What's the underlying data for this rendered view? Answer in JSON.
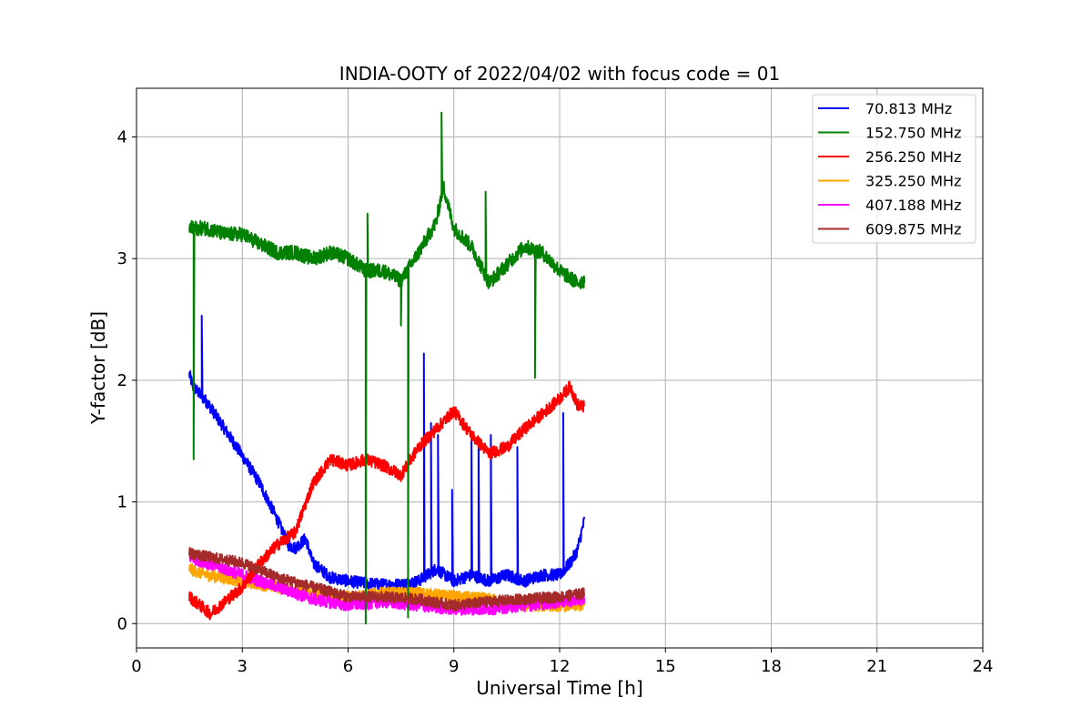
{
  "chart_data": {
    "type": "line",
    "title": "INDIA-OOTY of 2022/04/02 with focus code = 01",
    "xlabel": "Universal Time [h]",
    "ylabel": "Y-factor [dB]",
    "xlim": [
      0,
      24
    ],
    "ylim": [
      -0.2,
      4.4
    ],
    "xticks": [
      0,
      3,
      6,
      9,
      12,
      15,
      18,
      21,
      24
    ],
    "yticks": [
      0,
      1,
      2,
      3,
      4
    ],
    "grid": true,
    "legend_position": "top-right",
    "series": [
      {
        "name": " 70.813 MHz",
        "color": "#0000ff",
        "noise": 0.05,
        "x": [
          1.5,
          1.6,
          2.0,
          2.5,
          3.0,
          3.5,
          4.0,
          4.3,
          4.5,
          4.8,
          5.0,
          5.5,
          6.0,
          6.5,
          7.0,
          7.5,
          8.0,
          8.5,
          9.0,
          9.5,
          10.0,
          10.5,
          11.0,
          11.5,
          12.0,
          12.3,
          12.5,
          12.7
        ],
        "y": [
          2.05,
          1.95,
          1.82,
          1.6,
          1.38,
          1.15,
          0.85,
          0.65,
          0.62,
          0.7,
          0.5,
          0.38,
          0.35,
          0.33,
          0.32,
          0.32,
          0.35,
          0.45,
          0.35,
          0.4,
          0.35,
          0.4,
          0.35,
          0.4,
          0.4,
          0.5,
          0.6,
          0.85
        ],
        "spikes": [
          {
            "x": 1.85,
            "y": 2.53
          },
          {
            "x": 8.15,
            "y": 2.22
          },
          {
            "x": 8.35,
            "y": 1.65
          },
          {
            "x": 8.55,
            "y": 1.55
          },
          {
            "x": 9.5,
            "y": 1.5
          },
          {
            "x": 9.7,
            "y": 1.45
          },
          {
            "x": 10.05,
            "y": 1.55
          },
          {
            "x": 10.8,
            "y": 1.45
          },
          {
            "x": 12.1,
            "y": 1.73
          },
          {
            "x": 8.95,
            "y": 1.1
          }
        ]
      },
      {
        "name": "152.750 MHz",
        "color": "#008000",
        "noise": 0.06,
        "x": [
          1.5,
          2.0,
          2.5,
          3.0,
          3.5,
          4.0,
          4.5,
          5.0,
          5.5,
          6.0,
          6.5,
          7.0,
          7.5,
          8.0,
          8.5,
          8.7,
          9.0,
          9.5,
          10.0,
          10.5,
          11.0,
          11.5,
          12.0,
          12.5,
          12.7
        ],
        "y": [
          3.25,
          3.25,
          3.2,
          3.2,
          3.12,
          3.05,
          3.05,
          3.0,
          3.05,
          3.0,
          2.9,
          2.9,
          2.82,
          3.05,
          3.3,
          3.6,
          3.25,
          3.1,
          2.8,
          2.95,
          3.1,
          3.05,
          2.9,
          2.8,
          2.82
        ],
        "spikes": [
          {
            "x": 1.62,
            "y": 1.35
          },
          {
            "x": 6.5,
            "y": 0.0
          },
          {
            "x": 7.7,
            "y": 0.05
          },
          {
            "x": 11.3,
            "y": 2.02
          },
          {
            "x": 8.65,
            "y": 4.2
          },
          {
            "x": 6.55,
            "y": 3.37
          },
          {
            "x": 7.5,
            "y": 2.45
          },
          {
            "x": 9.9,
            "y": 3.55
          }
        ]
      },
      {
        "name": "256.250 MHz",
        "color": "#ff0000",
        "noise": 0.05,
        "x": [
          1.5,
          1.8,
          2.1,
          2.5,
          3.0,
          3.5,
          4.0,
          4.5,
          5.0,
          5.5,
          6.0,
          6.5,
          7.0,
          7.5,
          8.0,
          8.5,
          9.0,
          9.5,
          10.0,
          10.5,
          11.0,
          11.5,
          12.0,
          12.3,
          12.5,
          12.7
        ],
        "y": [
          0.22,
          0.15,
          0.08,
          0.18,
          0.3,
          0.5,
          0.65,
          0.75,
          1.15,
          1.35,
          1.3,
          1.35,
          1.3,
          1.22,
          1.45,
          1.6,
          1.75,
          1.55,
          1.4,
          1.45,
          1.6,
          1.72,
          1.85,
          1.95,
          1.8,
          1.78
        ],
        "spikes": []
      },
      {
        "name": "325.250 MHz",
        "color": "#ffa500",
        "noise": 0.05,
        "x": [
          1.5,
          2.0,
          3.0,
          4.0,
          5.0,
          6.0,
          7.0,
          8.0,
          9.0,
          10.0,
          11.0,
          12.0,
          12.7
        ],
        "y": [
          0.45,
          0.4,
          0.35,
          0.3,
          0.25,
          0.22,
          0.25,
          0.25,
          0.22,
          0.2,
          0.15,
          0.15,
          0.15
        ],
        "spikes": []
      },
      {
        "name": "407.188 MHz",
        "color": "#ff00ff",
        "noise": 0.05,
        "x": [
          1.5,
          2.0,
          3.0,
          4.0,
          5.0,
          6.0,
          7.0,
          8.0,
          9.0,
          10.0,
          11.0,
          12.0,
          12.7
        ],
        "y": [
          0.55,
          0.5,
          0.4,
          0.3,
          0.2,
          0.15,
          0.18,
          0.15,
          0.12,
          0.12,
          0.15,
          0.18,
          0.2
        ],
        "spikes": []
      },
      {
        "name": "609.875 MHz",
        "color": "#a52a2a",
        "noise": 0.045,
        "x": [
          1.5,
          2.0,
          3.0,
          4.0,
          5.0,
          6.0,
          7.0,
          8.0,
          9.0,
          10.0,
          11.0,
          12.0,
          12.7
        ],
        "y": [
          0.58,
          0.55,
          0.5,
          0.38,
          0.3,
          0.22,
          0.22,
          0.2,
          0.15,
          0.18,
          0.2,
          0.22,
          0.25
        ],
        "spikes": []
      }
    ]
  }
}
